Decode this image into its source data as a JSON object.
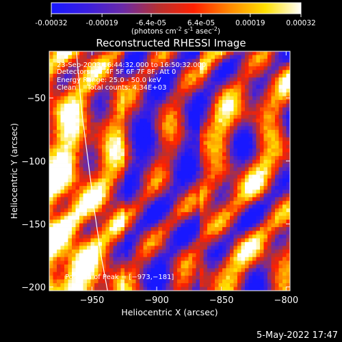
{
  "chart_data": {
    "type": "heatmap",
    "title": "Reconstructed RHESSI Image",
    "xlabel": "Heliocentric X (arcsec)",
    "ylabel": "Heliocentric Y (arcsec)",
    "xlim": [
      -983,
      -797
    ],
    "ylim": [
      -203,
      -13
    ],
    "xticks": [
      -950,
      -900,
      -850,
      -800
    ],
    "xtick_labels": [
      "−950",
      "−900",
      "−850",
      "−800"
    ],
    "yticks": [
      -150,
      -100,
      -50,
      -200
    ],
    "ytick_labels": [
      "−150",
      "−100",
      "−50",
      "−200"
    ],
    "colorbar": {
      "min": -0.00032,
      "max": 0.00032,
      "ticks": [
        -0.00032,
        -0.00019,
        -6.4e-05,
        6.4e-05,
        0.00019,
        0.00032
      ],
      "tick_labels": [
        "-0.00032",
        "-0.00019",
        "-6.4e-05",
        "6.4e-05",
        "0.00019",
        "0.00032"
      ],
      "unit_prefix": "(photons cm",
      "unit_sup1": "-2",
      "unit_mid1": " s",
      "unit_sup2": "-1",
      "unit_mid2": " asec",
      "unit_sup3": "-2",
      "unit_suffix": ")",
      "colormap_stops": [
        "#1818ff",
        "#3a1ee0",
        "#6a2aa8",
        "#b83030",
        "#ff2000",
        "#ff8800",
        "#ffe000",
        "#ffffff"
      ]
    },
    "annotations": [
      "23-Sep-2003 16:44:32.000 to 16:50:32.000",
      "Detectors: 3F 4F 5F 6F 7F 8F, Att 0",
      "Energy Range: 25.0 - 50.0 keV",
      "Clean     Total counts: 4.34E+03"
    ],
    "position_label": "Position of Peak = [−973,−181]",
    "peak_position": [
      -973,
      -181
    ],
    "limb_curve": {
      "x": [
        -962,
        -958,
        -953,
        -948,
        -943,
        -938
      ],
      "y": [
        -13,
        -60,
        -100,
        -140,
        -175,
        -203
      ]
    },
    "grid": false,
    "timestamp": "5-May-2022 17:47"
  }
}
